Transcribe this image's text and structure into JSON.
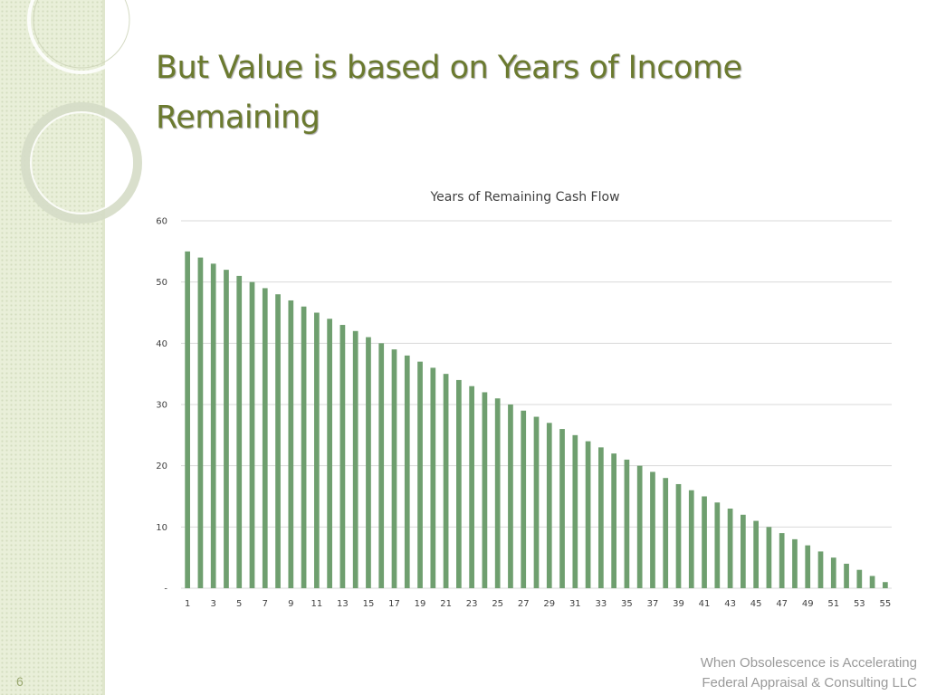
{
  "slide": {
    "title": "But Value is based on Years of Income Remaining",
    "number": "6",
    "footer_line1": "When Obsolescence is Accelerating",
    "footer_line2": "Federal Appraisal & Consulting LLC"
  },
  "colors": {
    "title": "#6b7a2f",
    "bar": "#6f9f6f",
    "gridline": "#d9d9d9",
    "sidebar": "#e9efd9"
  },
  "chart_data": {
    "type": "bar",
    "title": "Years of Remaining Cash Flow",
    "xlabel": "",
    "ylabel": "",
    "categories": [
      1,
      2,
      3,
      4,
      5,
      6,
      7,
      8,
      9,
      10,
      11,
      12,
      13,
      14,
      15,
      16,
      17,
      18,
      19,
      20,
      21,
      22,
      23,
      24,
      25,
      26,
      27,
      28,
      29,
      30,
      31,
      32,
      33,
      34,
      35,
      36,
      37,
      38,
      39,
      40,
      41,
      42,
      43,
      44,
      45,
      46,
      47,
      48,
      49,
      50,
      51,
      52,
      53,
      54,
      55
    ],
    "values": [
      55,
      54,
      53,
      52,
      51,
      50,
      49,
      48,
      47,
      46,
      45,
      44,
      43,
      42,
      41,
      40,
      39,
      38,
      37,
      36,
      35,
      34,
      33,
      32,
      31,
      30,
      29,
      28,
      27,
      26,
      25,
      24,
      23,
      22,
      21,
      20,
      19,
      18,
      17,
      16,
      15,
      14,
      13,
      12,
      11,
      10,
      9,
      8,
      7,
      6,
      5,
      4,
      3,
      2,
      1
    ],
    "x_tick_labels": [
      "1",
      "3",
      "5",
      "7",
      "9",
      "11",
      "13",
      "15",
      "17",
      "19",
      "21",
      "23",
      "25",
      "27",
      "29",
      "31",
      "33",
      "35",
      "37",
      "39",
      "41",
      "43",
      "45",
      "47",
      "49",
      "51",
      "53",
      "55"
    ],
    "y_ticks": [
      0,
      10,
      20,
      30,
      40,
      50,
      60
    ],
    "y_tick_labels": [
      "-",
      "10",
      "20",
      "30",
      "40",
      "50",
      "60"
    ],
    "ylim": [
      0,
      60
    ],
    "grid": true,
    "legend": "none"
  }
}
